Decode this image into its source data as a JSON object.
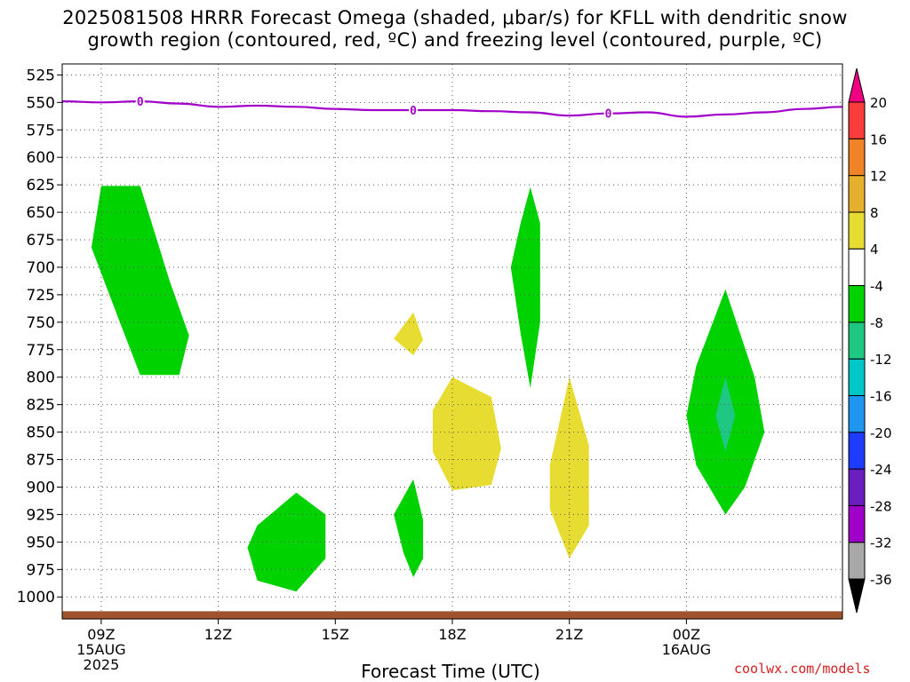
{
  "title_line1": "2025081508 HRRR Forecast Omega (shaded, μbar/s) for KFLL with dendritic snow",
  "title_line2": "growth region (contoured, red, ºC) and freezing level (contoured, purple, ºC)",
  "credit": "coolwx.com/models",
  "chart_data": {
    "type": "contour",
    "xlabel": "Forecast Time (UTC)",
    "x_range": [
      "2025-08-15T08:00Z",
      "2025-08-16T04:00Z"
    ],
    "x_ticks": [
      {
        "time": "2025-08-15T09:00Z",
        "label": [
          "09Z",
          "15AUG",
          "2025"
        ]
      },
      {
        "time": "2025-08-15T12:00Z",
        "label": [
          "12Z"
        ]
      },
      {
        "time": "2025-08-15T15:00Z",
        "label": [
          "15Z"
        ]
      },
      {
        "time": "2025-08-15T18:00Z",
        "label": [
          "18Z"
        ]
      },
      {
        "time": "2025-08-15T21:00Z",
        "label": [
          "21Z"
        ]
      },
      {
        "time": "2025-08-16T00:00Z",
        "label": [
          "00Z",
          "16AUG"
        ]
      }
    ],
    "y_ticks": [
      525,
      550,
      575,
      600,
      625,
      650,
      675,
      700,
      725,
      750,
      775,
      800,
      825,
      850,
      875,
      900,
      925,
      950,
      975,
      1000
    ],
    "y_range": [
      1020,
      515
    ],
    "y_unit": "hPa",
    "grid": true,
    "colorbar": {
      "levels": [
        -36,
        -32,
        -28,
        -24,
        -20,
        -16,
        -12,
        -8,
        -4,
        4,
        8,
        12,
        16,
        20
      ],
      "colors": [
        "#000000",
        "#a8a8a8",
        "#a000c8",
        "#6a1ec0",
        "#1e3cff",
        "#1e96f0",
        "#00c8c8",
        "#1ec882",
        "#00d200",
        "#ffffff",
        "#e6dc32",
        "#e6af2d",
        "#f08228",
        "#fa3c3c",
        "#f00082"
      ]
    },
    "freezing_level": {
      "label": "0",
      "color": "#a000c8",
      "label_points": [
        {
          "time": "2025-08-15T10:00Z",
          "hpa": 549
        },
        {
          "time": "2025-08-15T17:00Z",
          "hpa": 557
        },
        {
          "time": "2025-08-15T22:00Z",
          "hpa": 560
        }
      ],
      "points": [
        {
          "time": "2025-08-15T08:00Z",
          "hpa": 549
        },
        {
          "time": "2025-08-15T09:00Z",
          "hpa": 550
        },
        {
          "time": "2025-08-15T10:00Z",
          "hpa": 549
        },
        {
          "time": "2025-08-15T11:00Z",
          "hpa": 551
        },
        {
          "time": "2025-08-15T12:00Z",
          "hpa": 554
        },
        {
          "time": "2025-08-15T13:00Z",
          "hpa": 553
        },
        {
          "time": "2025-08-15T14:00Z",
          "hpa": 554
        },
        {
          "time": "2025-08-15T15:00Z",
          "hpa": 556
        },
        {
          "time": "2025-08-15T16:00Z",
          "hpa": 557
        },
        {
          "time": "2025-08-15T17:00Z",
          "hpa": 557
        },
        {
          "time": "2025-08-15T18:00Z",
          "hpa": 557
        },
        {
          "time": "2025-08-15T19:00Z",
          "hpa": 558
        },
        {
          "time": "2025-08-15T20:00Z",
          "hpa": 559
        },
        {
          "time": "2025-08-15T21:00Z",
          "hpa": 562
        },
        {
          "time": "2025-08-15T22:00Z",
          "hpa": 560
        },
        {
          "time": "2025-08-15T23:00Z",
          "hpa": 559
        },
        {
          "time": "2025-08-16T00:00Z",
          "hpa": 563
        },
        {
          "time": "2025-08-16T01:00Z",
          "hpa": 561
        },
        {
          "time": "2025-08-16T02:00Z",
          "hpa": 559
        },
        {
          "time": "2025-08-16T03:00Z",
          "hpa": 556
        },
        {
          "time": "2025-08-16T04:00Z",
          "hpa": 554
        }
      ]
    },
    "regions": [
      {
        "fill": "#00d200",
        "range": "-8 to -4",
        "points": [
          [
            "2025-08-15T09:00Z",
            626
          ],
          [
            "2025-08-15T10:00Z",
            626
          ],
          [
            "2025-08-15T10:45Z",
            712
          ],
          [
            "2025-08-15T11:15Z",
            762
          ],
          [
            "2025-08-15T11:00Z",
            798
          ],
          [
            "2025-08-15T10:00Z",
            798
          ],
          [
            "2025-08-15T09:30Z",
            752
          ],
          [
            "2025-08-15T08:45Z",
            682
          ],
          [
            "2025-08-15T09:00Z",
            626
          ]
        ]
      },
      {
        "fill": "#00d200",
        "range": "-8 to -4",
        "points": [
          [
            "2025-08-15T20:00Z",
            627
          ],
          [
            "2025-08-15T20:15Z",
            660
          ],
          [
            "2025-08-15T20:15Z",
            750
          ],
          [
            "2025-08-15T20:00Z",
            810
          ],
          [
            "2025-08-15T19:45Z",
            760
          ],
          [
            "2025-08-15T19:30Z",
            700
          ],
          [
            "2025-08-15T19:45Z",
            660
          ],
          [
            "2025-08-15T20:00Z",
            627
          ]
        ]
      },
      {
        "fill": "#00d200",
        "range": "-8 to -4",
        "points": [
          [
            "2025-08-16T01:00Z",
            720
          ],
          [
            "2025-08-16T01:45Z",
            800
          ],
          [
            "2025-08-16T02:00Z",
            850
          ],
          [
            "2025-08-16T01:30Z",
            900
          ],
          [
            "2025-08-16T01:00Z",
            925
          ],
          [
            "2025-08-16T00:15Z",
            880
          ],
          [
            "2025-08-16T00:00Z",
            835
          ],
          [
            "2025-08-16T00:15Z",
            790
          ],
          [
            "2025-08-16T01:00Z",
            720
          ]
        ]
      },
      {
        "fill": "#00d200",
        "range": "-8 to -4",
        "points": [
          [
            "2025-08-15T14:00Z",
            905
          ],
          [
            "2025-08-15T14:45Z",
            925
          ],
          [
            "2025-08-15T14:45Z",
            965
          ],
          [
            "2025-08-15T14:00Z",
            995
          ],
          [
            "2025-08-15T13:00Z",
            985
          ],
          [
            "2025-08-15T12:45Z",
            955
          ],
          [
            "2025-08-15T13:00Z",
            935
          ],
          [
            "2025-08-15T14:00Z",
            905
          ]
        ]
      },
      {
        "fill": "#00d200",
        "range": "-8 to -4",
        "points": [
          [
            "2025-08-15T17:00Z",
            893
          ],
          [
            "2025-08-15T17:15Z",
            930
          ],
          [
            "2025-08-15T17:15Z",
            965
          ],
          [
            "2025-08-15T17:00Z",
            982
          ],
          [
            "2025-08-15T16:45Z",
            960
          ],
          [
            "2025-08-15T16:30Z",
            925
          ],
          [
            "2025-08-15T17:00Z",
            893
          ]
        ]
      },
      {
        "fill": "#1ec882",
        "range": "-12 to -8",
        "points": [
          [
            "2025-08-16T01:00Z",
            800
          ],
          [
            "2025-08-16T01:15Z",
            835
          ],
          [
            "2025-08-16T01:00Z",
            868
          ],
          [
            "2025-08-16T00:45Z",
            835
          ],
          [
            "2025-08-16T01:00Z",
            800
          ]
        ]
      },
      {
        "fill": "#e6dc32",
        "range": "4 to 8",
        "points": [
          [
            "2025-08-15T17:00Z",
            741
          ],
          [
            "2025-08-15T17:15Z",
            766
          ],
          [
            "2025-08-15T17:00Z",
            780
          ],
          [
            "2025-08-15T16:30Z",
            765
          ],
          [
            "2025-08-15T17:00Z",
            741
          ]
        ]
      },
      {
        "fill": "#e6dc32",
        "range": "4 to 8",
        "points": [
          [
            "2025-08-15T18:00Z",
            800
          ],
          [
            "2025-08-15T19:00Z",
            818
          ],
          [
            "2025-08-15T19:15Z",
            865
          ],
          [
            "2025-08-15T19:00Z",
            898
          ],
          [
            "2025-08-15T18:00Z",
            903
          ],
          [
            "2025-08-15T17:30Z",
            868
          ],
          [
            "2025-08-15T17:30Z",
            830
          ],
          [
            "2025-08-15T18:00Z",
            800
          ]
        ]
      },
      {
        "fill": "#e6dc32",
        "range": "4 to 8",
        "points": [
          [
            "2025-08-15T21:00Z",
            800
          ],
          [
            "2025-08-15T21:30Z",
            862
          ],
          [
            "2025-08-15T21:30Z",
            935
          ],
          [
            "2025-08-15T21:00Z",
            965
          ],
          [
            "2025-08-15T20:30Z",
            920
          ],
          [
            "2025-08-15T20:30Z",
            880
          ],
          [
            "2025-08-15T21:00Z",
            800
          ]
        ]
      }
    ],
    "surface": {
      "color": "#a0522d",
      "hpa_top": 1013
    }
  }
}
